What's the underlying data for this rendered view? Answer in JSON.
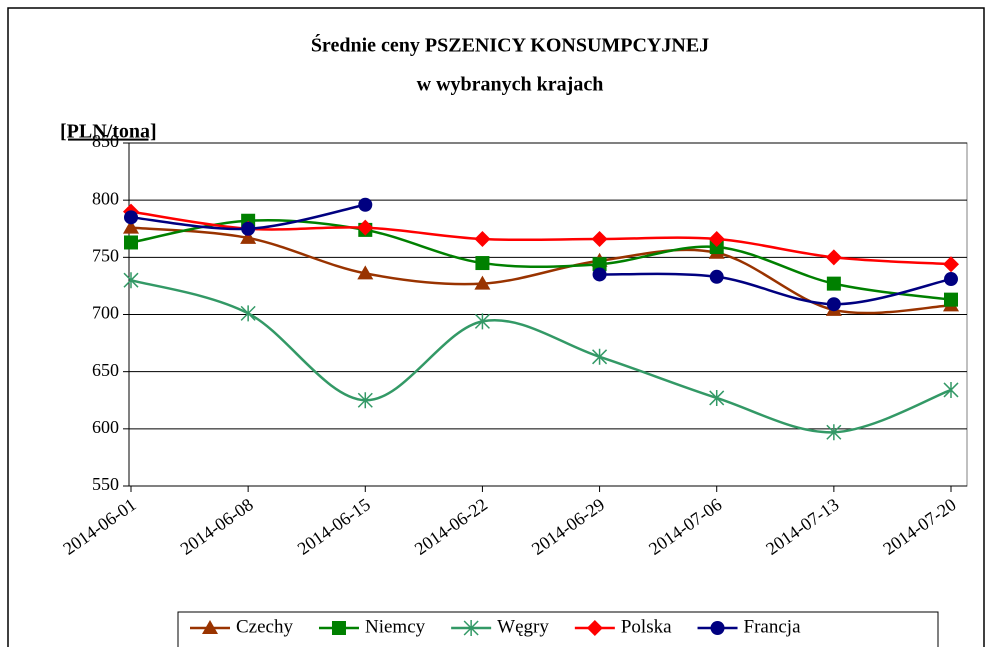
{
  "chart_data": {
    "type": "line",
    "title": "Średnie ceny PSZENICY KONSUMPCYJNEJ",
    "subtitle": "w wybranych krajach",
    "y_label": "[PLN/tona]",
    "categories": [
      "2014-06-01",
      "2014-06-08",
      "2014-06-15",
      "2014-06-22",
      "2014-06-29",
      "2014-07-06",
      "2014-07-13",
      "2014-07-20"
    ],
    "series": [
      {
        "name": "Czechy",
        "color": "#993300",
        "marker": "triangle",
        "values": [
          776,
          767,
          736,
          727,
          747,
          754,
          704,
          708
        ]
      },
      {
        "name": "Niemcy",
        "color": "#008000",
        "marker": "square",
        "values": [
          763,
          782,
          774,
          745,
          744,
          759,
          727,
          713
        ]
      },
      {
        "name": "Węgry",
        "color": "#339966",
        "marker": "star",
        "values": [
          730,
          701,
          625,
          694,
          663,
          627,
          597,
          634
        ]
      },
      {
        "name": "Polska",
        "color": "#ff0000",
        "marker": "diamond",
        "values": [
          790,
          775,
          776,
          766,
          766,
          766,
          750,
          744
        ]
      },
      {
        "name": "Francja",
        "color": "#000080",
        "marker": "circle",
        "values": [
          785,
          775,
          796,
          null,
          735,
          733,
          709,
          731
        ]
      }
    ],
    "ylim": [
      550,
      850
    ],
    "yticks": [
      550,
      600,
      650,
      700,
      750,
      800,
      850
    ],
    "grid": true,
    "legend": "bottom"
  }
}
